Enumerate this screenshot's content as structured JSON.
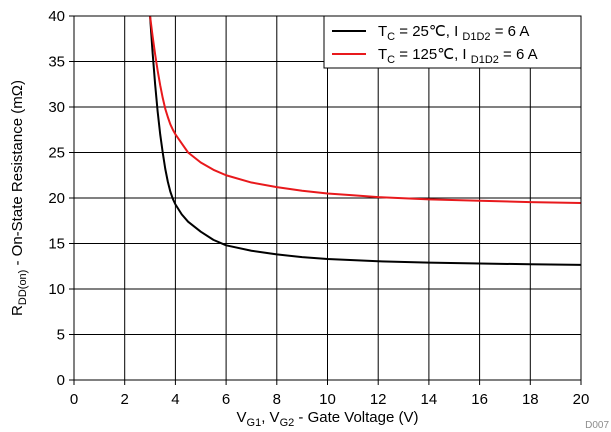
{
  "chart_data": {
    "type": "line",
    "xlim": [
      0,
      20
    ],
    "ylim": [
      0,
      40
    ],
    "x_ticks": [
      0,
      2,
      4,
      6,
      8,
      10,
      12,
      14,
      16,
      18,
      20
    ],
    "y_ticks": [
      0,
      5,
      10,
      15,
      20,
      25,
      30,
      35,
      40
    ],
    "grid": true,
    "legend_position": "top-right",
    "xlabel": {
      "parts": [
        {
          "text": "V",
          "sub": false
        },
        {
          "text": "G1",
          "sub": true
        },
        {
          "text": ", V",
          "sub": false
        },
        {
          "text": "G2",
          "sub": true
        },
        {
          "text": " - Gate Voltage (V)",
          "sub": false
        }
      ]
    },
    "ylabel": {
      "parts": [
        {
          "text": "R",
          "sub": false
        },
        {
          "text": "DD(on)",
          "sub": true
        },
        {
          "text": " - On-State Resistance (mΩ)",
          "sub": false
        }
      ]
    },
    "footnote": "D007",
    "series": [
      {
        "name": "T_C = 25℃, I_D1D2 = 6 A",
        "label_parts": [
          {
            "text": "T",
            "sub": false
          },
          {
            "text": "C",
            "sub": true
          },
          {
            "text": " = 25℃, I ",
            "sub": false
          },
          {
            "text": "D1D2",
            "sub": true
          },
          {
            "text": " = 6 A",
            "sub": false
          }
        ],
        "color": "#000000",
        "x": [
          3.0,
          3.1,
          3.2,
          3.3,
          3.4,
          3.5,
          3.6,
          3.7,
          3.8,
          3.9,
          4.0,
          4.25,
          4.5,
          5.0,
          5.5,
          6.0,
          7.0,
          8.0,
          9.0,
          10.0,
          12.0,
          14.0,
          16.0,
          18.0,
          20.0
        ],
        "y": [
          40.0,
          36.0,
          32.5,
          29.5,
          27.0,
          25.0,
          23.2,
          21.8,
          20.7,
          19.9,
          19.3,
          18.2,
          17.4,
          16.3,
          15.4,
          14.8,
          14.2,
          13.8,
          13.5,
          13.3,
          13.05,
          12.9,
          12.8,
          12.72,
          12.65
        ]
      },
      {
        "name": "T_C = 125℃, I_D1D2 = 6 A",
        "label_parts": [
          {
            "text": "T",
            "sub": false
          },
          {
            "text": "C",
            "sub": true
          },
          {
            "text": " = 125℃, I ",
            "sub": false
          },
          {
            "text": "D1D2",
            "sub": true
          },
          {
            "text": " = 6 A",
            "sub": false
          }
        ],
        "color": "#e8191c",
        "x": [
          3.0,
          3.1,
          3.2,
          3.3,
          3.4,
          3.5,
          3.6,
          3.7,
          3.8,
          3.9,
          4.0,
          4.25,
          4.5,
          5.0,
          5.5,
          6.0,
          7.0,
          8.0,
          9.0,
          10.0,
          11.0,
          12.0,
          14.0,
          16.0,
          18.0,
          20.0
        ],
        "y": [
          40.0,
          37.8,
          35.8,
          34.0,
          32.4,
          31.0,
          29.8,
          28.9,
          28.1,
          27.5,
          27.0,
          26.0,
          25.0,
          23.9,
          23.1,
          22.5,
          21.7,
          21.2,
          20.8,
          20.5,
          20.3,
          20.1,
          19.85,
          19.7,
          19.55,
          19.45
        ]
      }
    ]
  }
}
